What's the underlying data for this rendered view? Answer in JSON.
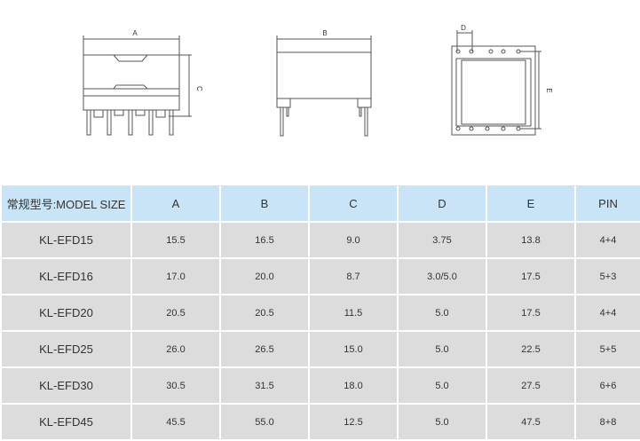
{
  "drawings": {
    "label_a": "A",
    "label_b": "B",
    "label_c": "C",
    "label_d": "D",
    "label_e": "E"
  },
  "table": {
    "headers": [
      "常规型号:MODEL SIZE",
      "A",
      "B",
      "C",
      "D",
      "E",
      "PIN"
    ],
    "rows": [
      [
        "KL-EFD15",
        "15.5",
        "16.5",
        "9.0",
        "3.75",
        "13.8",
        "4+4"
      ],
      [
        "KL-EFD16",
        "17.0",
        "20.0",
        "8.7",
        "3.0/5.0",
        "17.5",
        "5+3"
      ],
      [
        "KL-EFD20",
        "20.5",
        "20.5",
        "11.5",
        "5.0",
        "17.5",
        "4+4"
      ],
      [
        "KL-EFD25",
        "26.0",
        "26.5",
        "15.0",
        "5.0",
        "22.5",
        "5+5"
      ],
      [
        "KL-EFD30",
        "30.5",
        "31.5",
        "18.0",
        "5.0",
        "27.5",
        "6+6"
      ],
      [
        "KL-EFD45",
        "45.5",
        "55.0",
        "12.5",
        "5.0",
        "47.5",
        "8+8"
      ]
    ]
  }
}
